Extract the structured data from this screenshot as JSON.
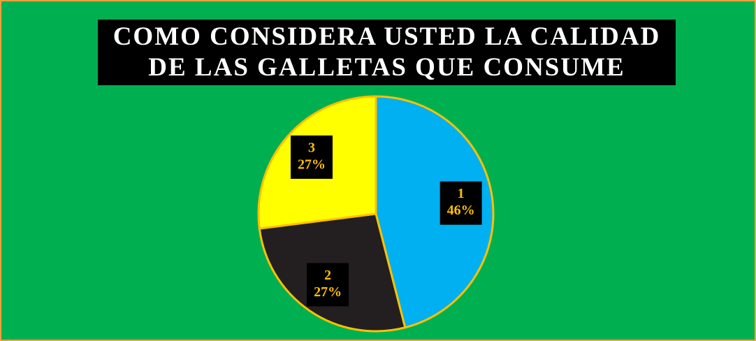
{
  "chart_data": {
    "type": "pie",
    "title": "COMO CONSIDERA USTED LA CALIDAD\nDE LAS GALLETAS QUE CONSUME",
    "categories": [
      "1",
      "2",
      "3"
    ],
    "values": [
      46,
      27,
      27
    ],
    "value_labels": [
      "46%",
      "27%",
      "27%"
    ],
    "colors": [
      "#00b0f0",
      "#231f20",
      "#ffff00"
    ]
  }
}
